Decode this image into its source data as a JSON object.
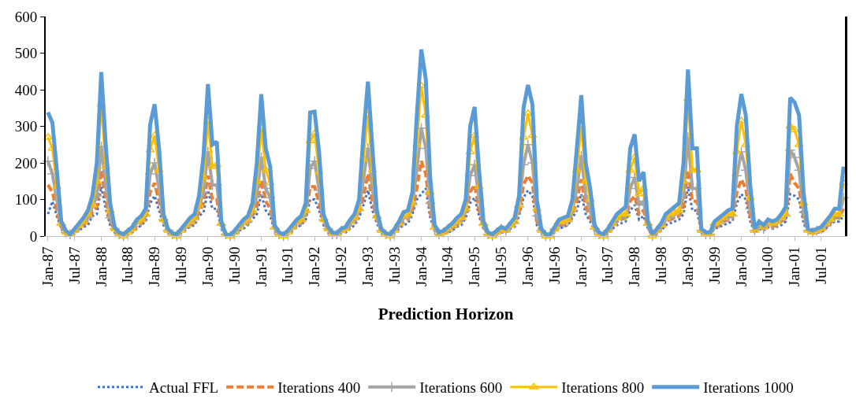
{
  "chart_data": {
    "type": "line",
    "xlabel": "Prediction Horizon",
    "categories": [
      "Jan-87",
      null,
      null,
      null,
      null,
      null,
      "Jul-87",
      null,
      null,
      null,
      null,
      null,
      "Jan-88",
      null,
      null,
      null,
      null,
      null,
      "Jul-88",
      null,
      null,
      null,
      null,
      null,
      "Jan-89",
      null,
      null,
      null,
      null,
      null,
      "Jul-89",
      null,
      null,
      null,
      null,
      null,
      "Jan-90",
      null,
      null,
      null,
      null,
      null,
      "Jul-90",
      null,
      null,
      null,
      null,
      null,
      "Jan-91",
      null,
      null,
      null,
      null,
      null,
      "Jul-91",
      null,
      null,
      null,
      null,
      null,
      "Jan-92",
      null,
      null,
      null,
      null,
      null,
      "Jul-92",
      null,
      null,
      null,
      null,
      null,
      "Jan-93",
      null,
      null,
      null,
      null,
      null,
      "Jul-93",
      null,
      null,
      null,
      null,
      null,
      "Jan-94",
      null,
      null,
      null,
      null,
      null,
      "Jul-94",
      null,
      null,
      null,
      null,
      null,
      "Jan-95",
      null,
      null,
      null,
      null,
      null,
      "Jul-95",
      null,
      null,
      null,
      null,
      null,
      "Jan-96",
      null,
      null,
      null,
      null,
      null,
      "Jul-96",
      null,
      null,
      null,
      null,
      null,
      "Jan-97",
      null,
      null,
      null,
      null,
      null,
      "Jul-97",
      null,
      null,
      null,
      null,
      null,
      "Jan-98",
      null,
      null,
      null,
      null,
      null,
      "Jul-98",
      null,
      null,
      null,
      null,
      null,
      "Jan-99",
      null,
      null,
      null,
      null,
      null,
      "Jul-99",
      null,
      null,
      null,
      null,
      null,
      "Jan-00",
      null,
      null,
      null,
      null,
      null,
      "Jul-00",
      null,
      null,
      null,
      null,
      null,
      "Jan-01",
      null,
      null,
      null,
      null,
      null,
      "Jul-01",
      null,
      null,
      null,
      null,
      null
    ],
    "ylim": [
      0,
      600
    ],
    "yticks": [
      0,
      100,
      200,
      300,
      400,
      500,
      600
    ],
    "legend": "bottom",
    "series": [
      {
        "name": "Actual FFL",
        "color": "#4472c4",
        "marker": "none",
        "line_style": "dotted",
        "values": [
          60,
          95,
          55,
          20,
          5,
          0,
          10,
          15,
          25,
          30,
          55,
          60,
          135,
          75,
          30,
          10,
          5,
          0,
          5,
          10,
          20,
          30,
          40,
          90,
          110,
          70,
          30,
          10,
          0,
          0,
          10,
          20,
          25,
          30,
          55,
          65,
          125,
          75,
          75,
          20,
          0,
          0,
          5,
          15,
          20,
          30,
          45,
          60,
          115,
          70,
          55,
          15,
          5,
          0,
          5,
          15,
          25,
          30,
          45,
          100,
          100,
          70,
          30,
          10,
          5,
          0,
          10,
          10,
          20,
          30,
          50,
          85,
          125,
          70,
          35,
          10,
          0,
          0,
          10,
          20,
          30,
          35,
          60,
          100,
          115,
          130,
          50,
          15,
          0,
          5,
          10,
          15,
          25,
          30,
          50,
          90,
          105,
          55,
          20,
          5,
          0,
          5,
          10,
          10,
          20,
          25,
          55,
          105,
          125,
          110,
          30,
          10,
          0,
          0,
          10,
          20,
          25,
          30,
          50,
          70,
          115,
          60,
          40,
          15,
          5,
          0,
          10,
          20,
          30,
          35,
          40,
          70,
          85,
          45,
          55,
          20,
          0,
          5,
          15,
          30,
          35,
          40,
          45,
          60,
          135,
          70,
          70,
          10,
          5,
          5,
          20,
          25,
          30,
          35,
          40,
          90,
          115,
          100,
          40,
          10,
          20,
          15,
          25,
          20,
          25,
          30,
          40,
          115,
          110,
          100,
          35,
          10,
          5,
          10,
          10,
          20,
          30,
          40,
          40,
          55
        ]
      },
      {
        "name": "Iterations 400",
        "color": "#ed7d31",
        "marker": "none",
        "line_style": "dashed",
        "values": [
          140,
          120,
          70,
          25,
          10,
          5,
          10,
          20,
          30,
          45,
          65,
          80,
          180,
          100,
          40,
          15,
          5,
          0,
          10,
          15,
          30,
          35,
          50,
          120,
          145,
          95,
          40,
          15,
          5,
          0,
          15,
          25,
          30,
          40,
          65,
          90,
          165,
          100,
          100,
          25,
          5,
          0,
          10,
          20,
          30,
          35,
          55,
          80,
          155,
          95,
          75,
          20,
          5,
          0,
          10,
          20,
          30,
          35,
          55,
          135,
          135,
          90,
          40,
          15,
          5,
          5,
          15,
          15,
          30,
          40,
          60,
          110,
          170,
          95,
          45,
          15,
          5,
          0,
          15,
          25,
          40,
          45,
          70,
          130,
          205,
          170,
          65,
          20,
          5,
          10,
          15,
          20,
          30,
          40,
          60,
          120,
          140,
          70,
          25,
          5,
          0,
          10,
          15,
          15,
          25,
          35,
          65,
          140,
          165,
          145,
          40,
          15,
          0,
          0,
          15,
          30,
          30,
          35,
          60,
          95,
          155,
          80,
          50,
          20,
          5,
          0,
          15,
          25,
          40,
          45,
          50,
          95,
          110,
          60,
          70,
          25,
          0,
          10,
          25,
          40,
          45,
          50,
          55,
          80,
          180,
          95,
          95,
          15,
          5,
          5,
          25,
          30,
          40,
          45,
          50,
          120,
          155,
          130,
          55,
          15,
          25,
          20,
          30,
          25,
          30,
          40,
          50,
          170,
          145,
          130,
          50,
          15,
          10,
          15,
          15,
          25,
          35,
          50,
          50,
          75
        ]
      },
      {
        "name": "Iterations 600",
        "color": "#a5a5a5",
        "marker": "cross",
        "line_style": "solid",
        "values": [
          205,
          170,
          100,
          30,
          10,
          5,
          15,
          25,
          40,
          50,
          80,
          110,
          245,
          140,
          50,
          20,
          5,
          0,
          10,
          20,
          35,
          40,
          55,
          170,
          200,
          130,
          45,
          15,
          5,
          0,
          15,
          25,
          35,
          45,
          80,
          120,
          230,
          140,
          140,
          30,
          5,
          0,
          10,
          20,
          35,
          40,
          65,
          110,
          215,
          130,
          105,
          20,
          5,
          0,
          10,
          20,
          35,
          40,
          65,
          185,
          205,
          125,
          45,
          20,
          5,
          5,
          15,
          20,
          35,
          45,
          70,
          155,
          240,
          130,
          50,
          15,
          5,
          0,
          15,
          30,
          50,
          50,
          85,
          180,
          295,
          240,
          90,
          20,
          5,
          10,
          20,
          25,
          35,
          45,
          70,
          165,
          195,
          100,
          30,
          5,
          0,
          10,
          20,
          15,
          25,
          35,
          80,
          195,
          250,
          200,
          55,
          15,
          0,
          0,
          20,
          35,
          35,
          40,
          70,
          130,
          220,
          110,
          70,
          20,
          5,
          0,
          15,
          30,
          45,
          50,
          55,
          130,
          160,
          85,
          95,
          30,
          0,
          15,
          25,
          45,
          50,
          60,
          65,
          110,
          270,
          130,
          130,
          15,
          5,
          5,
          30,
          35,
          45,
          50,
          55,
          165,
          230,
          180,
          75,
          15,
          30,
          20,
          35,
          30,
          35,
          45,
          55,
          235,
          215,
          180,
          65,
          15,
          10,
          15,
          20,
          30,
          40,
          55,
          55,
          105
        ]
      },
      {
        "name": "Iterations 800",
        "color": "#ffc000",
        "marker": "triangle",
        "line_style": "solid",
        "values": [
          270,
          240,
          135,
          35,
          10,
          5,
          15,
          30,
          40,
          60,
          85,
          150,
          360,
          190,
          70,
          20,
          5,
          0,
          10,
          20,
          40,
          45,
          60,
          235,
          275,
          180,
          45,
          15,
          5,
          0,
          15,
          30,
          40,
          50,
          85,
          160,
          315,
          190,
          195,
          35,
          5,
          0,
          10,
          25,
          40,
          45,
          70,
          150,
          295,
          180,
          145,
          25,
          5,
          0,
          10,
          25,
          40,
          45,
          70,
          260,
          280,
          175,
          45,
          20,
          5,
          5,
          15,
          20,
          40,
          50,
          75,
          210,
          330,
          180,
          55,
          15,
          5,
          0,
          15,
          35,
          55,
          60,
          90,
          250,
          410,
          330,
          120,
          25,
          5,
          10,
          20,
          30,
          40,
          50,
          75,
          230,
          275,
          135,
          35,
          5,
          0,
          10,
          20,
          15,
          30,
          40,
          85,
          270,
          335,
          275,
          75,
          15,
          0,
          0,
          20,
          40,
          40,
          45,
          75,
          180,
          300,
          150,
          100,
          25,
          5,
          0,
          15,
          35,
          50,
          60,
          60,
          180,
          215,
          115,
          130,
          35,
          0,
          15,
          30,
          50,
          60,
          65,
          70,
          150,
          375,
          180,
          180,
          15,
          5,
          5,
          35,
          40,
          50,
          60,
          60,
          230,
          315,
          250,
          105,
          15,
          35,
          25,
          40,
          35,
          40,
          50,
          60,
          300,
          290,
          250,
          90,
          15,
          10,
          15,
          20,
          35,
          45,
          60,
          60,
          145
        ]
      },
      {
        "name": "Iterations 1000",
        "color": "#5b9bd5",
        "marker": "none",
        "line_style": "solid",
        "values": [
          338,
          310,
          180,
          40,
          15,
          5,
          20,
          35,
          50,
          70,
          110,
          200,
          448,
          250,
          90,
          25,
          10,
          5,
          15,
          25,
          45,
          55,
          75,
          305,
          360,
          240,
          60,
          20,
          8,
          5,
          20,
          35,
          50,
          60,
          110,
          220,
          415,
          250,
          258,
          40,
          5,
          2,
          15,
          30,
          45,
          55,
          90,
          200,
          388,
          240,
          190,
          30,
          10,
          5,
          15,
          30,
          45,
          55,
          90,
          338,
          340,
          230,
          60,
          25,
          10,
          8,
          20,
          25,
          45,
          60,
          100,
          280,
          422,
          240,
          70,
          20,
          8,
          5,
          20,
          40,
          65,
          70,
          120,
          330,
          510,
          430,
          160,
          30,
          10,
          15,
          25,
          35,
          50,
          60,
          100,
          300,
          353,
          180,
          40,
          10,
          5,
          15,
          25,
          20,
          35,
          50,
          110,
          350,
          413,
          360,
          100,
          20,
          5,
          5,
          25,
          45,
          50,
          55,
          100,
          240,
          385,
          200,
          130,
          30,
          10,
          5,
          20,
          40,
          60,
          70,
          80,
          240,
          278,
          150,
          175,
          40,
          5,
          20,
          35,
          60,
          70,
          80,
          90,
          200,
          455,
          240,
          240,
          20,
          10,
          10,
          40,
          50,
          60,
          70,
          75,
          300,
          388,
          330,
          140,
          20,
          40,
          30,
          45,
          40,
          45,
          60,
          80,
          378,
          365,
          330,
          120,
          20,
          15,
          20,
          25,
          40,
          55,
          75,
          75,
          190
        ]
      }
    ]
  }
}
